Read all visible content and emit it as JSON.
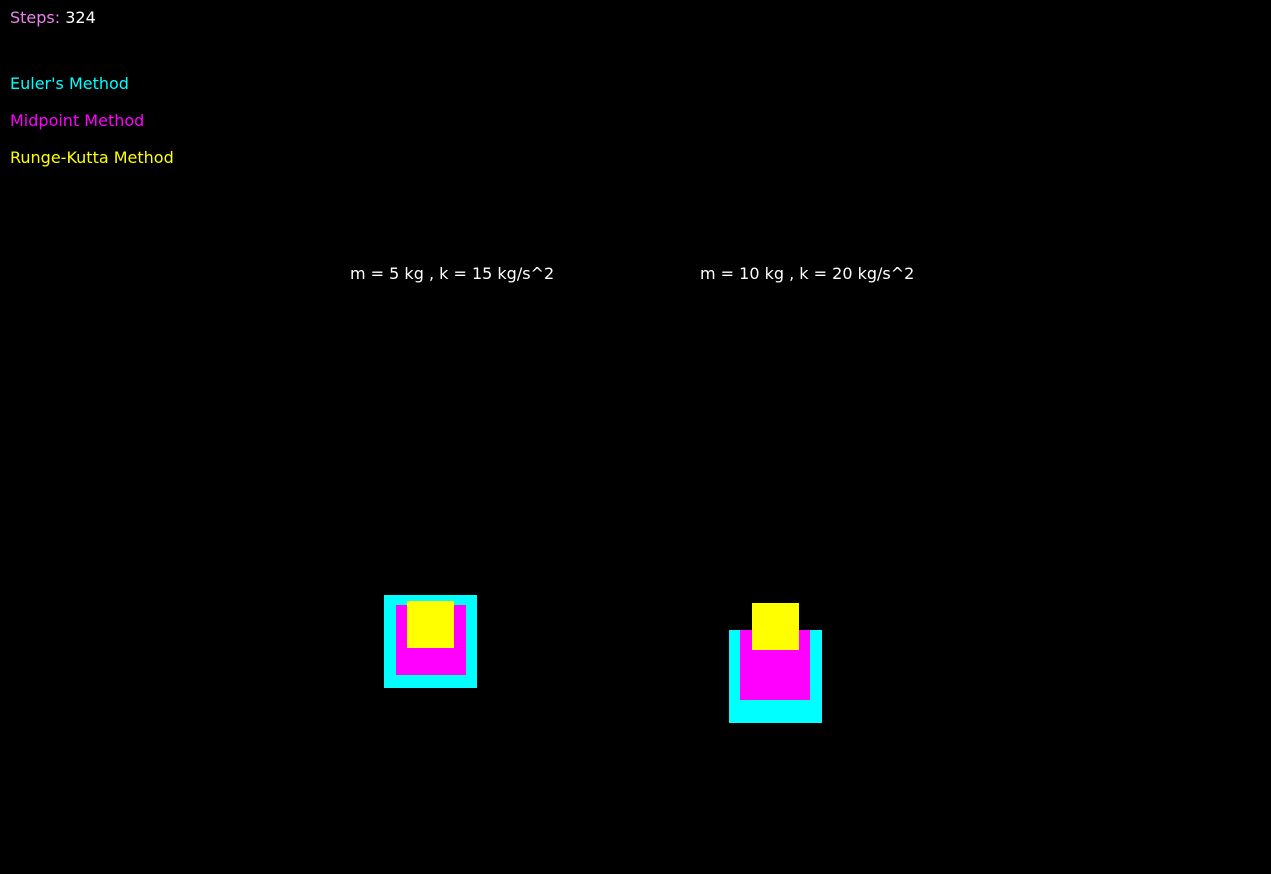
{
  "steps": {
    "label": "Steps:",
    "value": "324"
  },
  "legend": {
    "items": [
      {
        "label": "Euler's Method",
        "color": "#00ffff"
      },
      {
        "label": "Midpoint Method",
        "color": "#ff00ff"
      },
      {
        "label": "Runge-Kutta Method",
        "color": "#ffff00"
      }
    ]
  },
  "systems": [
    {
      "label": "m = 5 kg , k = 15 kg/s^2"
    },
    {
      "label": "m = 10 kg , k = 20 kg/s^2"
    }
  ],
  "colors": {
    "background": "#000000",
    "steps_label": "#ee82ee",
    "text": "#ffffff",
    "euler": "#00ffff",
    "midpoint": "#ff00ff",
    "runge_kutta": "#ffff00"
  }
}
